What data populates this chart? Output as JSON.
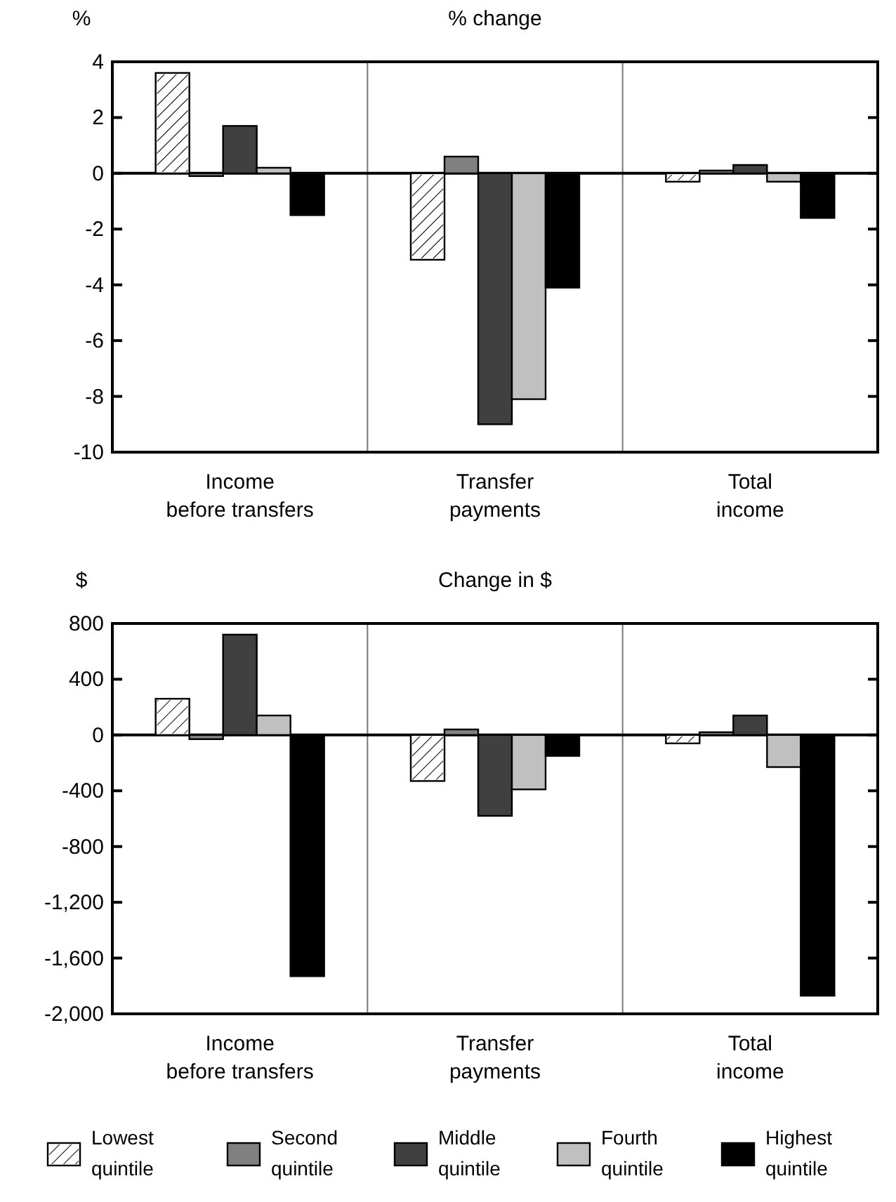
{
  "chart_data": [
    {
      "type": "bar",
      "title": "% change",
      "ylabel": "%",
      "categories": [
        "Income before transfers",
        "Transfer payments",
        "Total income"
      ],
      "ylim": [
        -10,
        4
      ],
      "yticks": [
        -10,
        -8,
        -6,
        -4,
        -2,
        0,
        2,
        4
      ],
      "grid": false,
      "legend": false,
      "series": [
        {
          "color": "#ffffff",
          "values": [
            3.6,
            -3.1,
            -0.3
          ]
        },
        {
          "color": "#808080",
          "values": [
            -0.1,
            0.6,
            0.1
          ]
        },
        {
          "color": "#404040",
          "values": [
            1.7,
            -9.0,
            0.3
          ]
        },
        {
          "color": "#c0c0c0",
          "values": [
            0.2,
            -8.1,
            -0.3
          ]
        },
        {
          "color": "#000000",
          "values": [
            -1.5,
            -4.1,
            -1.6
          ]
        }
      ]
    },
    {
      "type": "bar",
      "title": "Change in $",
      "ylabel": "$",
      "categories": [
        "Income before transfers",
        "Transfer payments",
        "Total income"
      ],
      "ylim": [
        -2000,
        800
      ],
      "yticks": [
        {
          "value": -2000,
          "label": "-2,000"
        },
        {
          "value": -1600,
          "label": "-1,600"
        },
        {
          "value": -1200,
          "label": "-1,200"
        },
        -800,
        -400,
        0,
        400,
        800
      ],
      "grid": false,
      "legend": "bottom",
      "series": [
        {
          "name": "Lowest quintile",
          "color": "#ffffff",
          "values": [
            260,
            -330,
            -60
          ]
        },
        {
          "name": "Second quintile",
          "color": "#808080",
          "values": [
            -30,
            40,
            20
          ]
        },
        {
          "name": "Middle quintile",
          "color": "#404040",
          "values": [
            720,
            -580,
            140
          ]
        },
        {
          "name": "Fourth quintile",
          "color": "#c0c0c0",
          "values": [
            140,
            -390,
            -230
          ]
        },
        {
          "name": "Highest quintile",
          "color": "#000000",
          "values": [
            -1730,
            -150,
            -1870
          ]
        }
      ]
    }
  ]
}
